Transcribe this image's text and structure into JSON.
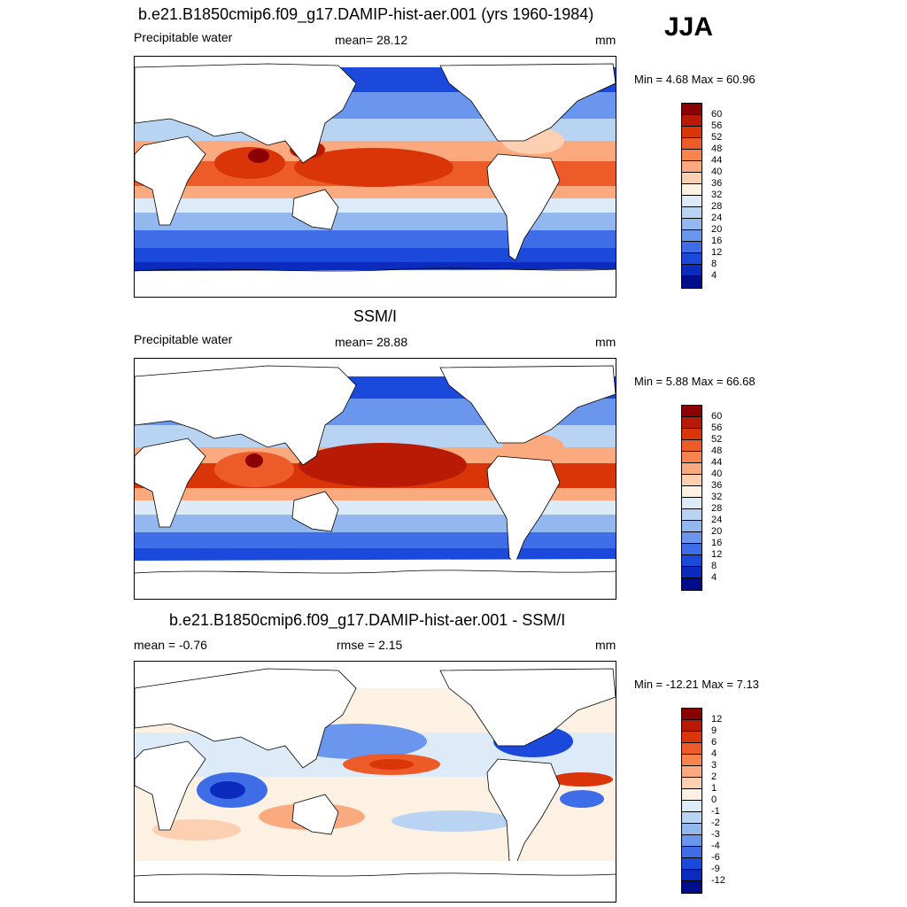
{
  "season": "JJA",
  "panels": [
    {
      "title": "b.e21.B1850cmip6.f09_g17.DAMIP-hist-aer.001 (yrs 1960-1984)",
      "left": "Precipitable water",
      "center": "mean=  28.12",
      "right": "mm",
      "minmax": "Min =   4.68 Max =  60.96",
      "colorbar_labels": [
        "60",
        "56",
        "52",
        "48",
        "44",
        "40",
        "36",
        "32",
        "28",
        "24",
        "20",
        "16",
        "12",
        "8",
        "4"
      ],
      "colorbar_colors": [
        "#8b0000",
        "#b81a05",
        "#d93509",
        "#ed5b29",
        "#f7834d",
        "#fbaa80",
        "#fdd0b2",
        "#fdf1e4",
        "#ddeaf7",
        "#b8d4f2",
        "#93b8ef",
        "#6a96ee",
        "#3f6de8",
        "#1a49dc",
        "#0a2bbd",
        "#000d8a"
      ]
    },
    {
      "title": "SSM/I",
      "left": "Precipitable water",
      "center": "mean=  28.88",
      "right": "mm",
      "minmax": "Min =   5.88 Max =  66.68",
      "colorbar_labels": [
        "60",
        "56",
        "52",
        "48",
        "44",
        "40",
        "36",
        "32",
        "28",
        "24",
        "20",
        "16",
        "12",
        "8",
        "4"
      ],
      "colorbar_colors": [
        "#8b0000",
        "#b81a05",
        "#d93509",
        "#ed5b29",
        "#f7834d",
        "#fbaa80",
        "#fdd0b2",
        "#fdf1e4",
        "#ddeaf7",
        "#b8d4f2",
        "#93b8ef",
        "#6a96ee",
        "#3f6de8",
        "#1a49dc",
        "#0a2bbd",
        "#000d8a"
      ]
    },
    {
      "title": "b.e21.B1850cmip6.f09_g17.DAMIP-hist-aer.001 - SSM/I",
      "left": "mean =  -0.76",
      "center": "rmse =   2.15",
      "right": "mm",
      "minmax": "Min = -12.21 Max =   7.13",
      "colorbar_labels": [
        "12",
        "9",
        "6",
        "4",
        "3",
        "2",
        "1",
        "0",
        "-1",
        "-2",
        "-3",
        "-4",
        "-6",
        "-9",
        "-12"
      ],
      "colorbar_colors": [
        "#8b0000",
        "#b81a05",
        "#d93509",
        "#ed5b29",
        "#f7834d",
        "#fbaa80",
        "#fdd0b2",
        "#fdf1e4",
        "#ddeaf7",
        "#b8d4f2",
        "#93b8ef",
        "#6a96ee",
        "#3f6de8",
        "#1a49dc",
        "#0a2bbd",
        "#000d8a"
      ]
    }
  ]
}
